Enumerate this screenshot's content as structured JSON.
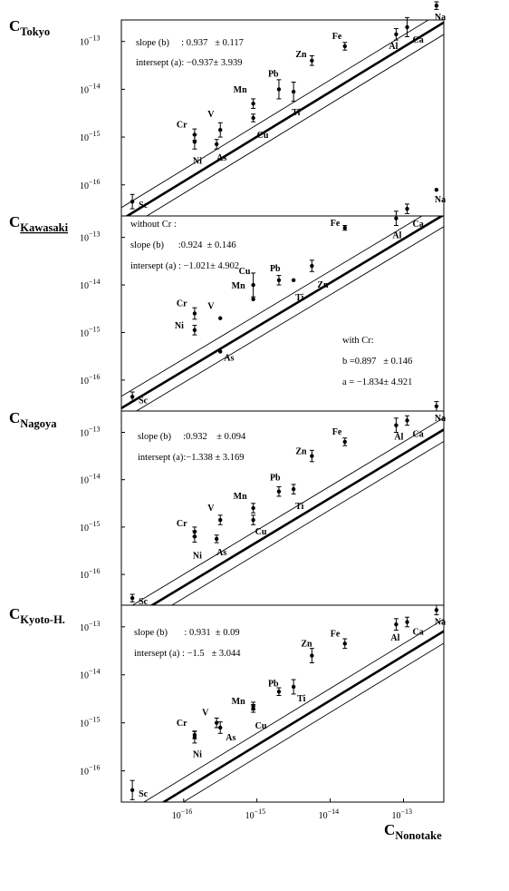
{
  "chart_data": [
    {
      "type": "scatter",
      "ylabel_main": "C",
      "ylabel_sub": "Tokyo",
      "ylabel_underline": false,
      "xlim_log10": [
        -16.85,
        -12.45
      ],
      "ylim_log10": [
        -16.65,
        -12.55
      ],
      "y_ticks": [
        {
          "exp": -16,
          "label": "-16"
        },
        {
          "exp": -15,
          "label": "-15"
        },
        {
          "exp": -14,
          "label": "-14"
        },
        {
          "exp": -13,
          "label": "-13"
        }
      ],
      "fit": {
        "slope": 0.937,
        "intercept": -0.937
      },
      "band_offset": 0.25,
      "points": [
        {
          "el": "Sc",
          "x": -16.7,
          "y": -16.35,
          "err": 0.15,
          "lx": 7,
          "ly": 7
        },
        {
          "el": "Ni",
          "x": -15.85,
          "y": -15.1,
          "err": 0.15,
          "lx": -2,
          "ly": 24
        },
        {
          "el": "Cr",
          "x": -15.85,
          "y": -14.95,
          "err": 0.12,
          "lx": -20,
          "ly": -8
        },
        {
          "el": "As",
          "x": -15.55,
          "y": -15.15,
          "err": 0.1,
          "lx": 0,
          "ly": 18
        },
        {
          "el": "V",
          "x": -15.5,
          "y": -14.85,
          "err": 0.15,
          "lx": -14,
          "ly": -14
        },
        {
          "el": "Cu",
          "x": -15.05,
          "y": -14.6,
          "err": 0.08,
          "lx": 4,
          "ly": 22
        },
        {
          "el": "Mn",
          "x": -15.05,
          "y": -14.3,
          "err": 0.1,
          "lx": -22,
          "ly": -12
        },
        {
          "el": "Pb",
          "x": -14.7,
          "y": -14.0,
          "err": 0.2,
          "lx": -12,
          "ly": -14
        },
        {
          "el": "Ti",
          "x": -14.5,
          "y": -14.05,
          "err": 0.2,
          "lx": -2,
          "ly": 26
        },
        {
          "el": "Zn",
          "x": -14.25,
          "y": -13.4,
          "err": 0.1,
          "lx": -18,
          "ly": -4
        },
        {
          "el": "Fe",
          "x": -13.8,
          "y": -13.1,
          "err": 0.08,
          "lx": -14,
          "ly": -8
        },
        {
          "el": "Al",
          "x": -13.1,
          "y": -12.85,
          "err": 0.12,
          "lx": -8,
          "ly": 16
        },
        {
          "el": "Ca",
          "x": -12.95,
          "y": -12.7,
          "err": 0.2,
          "lx": 6,
          "ly": 17
        },
        {
          "el": "Na",
          "x": -12.55,
          "y": -12.25,
          "err": 0.08,
          "lx": -2,
          "ly": 16
        }
      ],
      "annotations": [
        "slope (b)     : 0.937   ± 0.117",
        "intersept (a): −0.937± 3.939"
      ]
    },
    {
      "type": "scatter",
      "ylabel_main": "C",
      "ylabel_sub": "Kawasaki",
      "ylabel_underline": true,
      "xlim_log10": [
        -16.85,
        -12.45
      ],
      "ylim_log10": [
        -16.65,
        -12.55
      ],
      "y_ticks": [
        {
          "exp": -16,
          "label": "-16"
        },
        {
          "exp": -15,
          "label": "-15"
        },
        {
          "exp": -14,
          "label": "-14"
        },
        {
          "exp": -13,
          "label": "-13"
        }
      ],
      "fit": {
        "slope": 0.924,
        "intercept": -1.021
      },
      "band_offset": 0.25,
      "points": [
        {
          "el": "Sc",
          "x": -16.7,
          "y": -16.35,
          "err": 0.1,
          "lx": 7,
          "ly": 7
        },
        {
          "el": "Ni",
          "x": -15.85,
          "y": -14.95,
          "err": 0.1,
          "lx": -22,
          "ly": -2
        },
        {
          "el": "Cr",
          "x": -15.85,
          "y": -14.6,
          "err": 0.12,
          "lx": -20,
          "ly": -8
        },
        {
          "el": "As",
          "x": -15.5,
          "y": -15.4,
          "err": 0,
          "lx": 4,
          "ly": 10
        },
        {
          "el": "V",
          "x": -15.5,
          "y": -14.7,
          "err": 0,
          "lx": -14,
          "ly": -10
        },
        {
          "el": "Mn",
          "x": -15.05,
          "y": -14.0,
          "err": 0.25,
          "lx": -24,
          "ly": 4
        },
        {
          "el": "Cu",
          "x": -15.05,
          "y": -14.3,
          "err": 0,
          "lx": -16,
          "ly": -28
        },
        {
          "el": "Pb",
          "x": -14.7,
          "y": -13.9,
          "err": 0.1,
          "lx": -10,
          "ly": -10
        },
        {
          "el": "Ti",
          "x": -14.5,
          "y": -13.9,
          "err": 0,
          "lx": 2,
          "ly": 22
        },
        {
          "el": "Zn",
          "x": -14.25,
          "y": -13.6,
          "err": 0.12,
          "lx": 6,
          "ly": 24
        },
        {
          "el": "Fe",
          "x": -13.8,
          "y": -12.8,
          "err": 0.05,
          "lx": -16,
          "ly": -2
        },
        {
          "el": "Al",
          "x": -13.1,
          "y": -12.6,
          "err": 0.15,
          "lx": -4,
          "ly": 22
        },
        {
          "el": "Ca",
          "x": -12.95,
          "y": -12.4,
          "err": 0.1,
          "lx": 6,
          "ly": 20
        },
        {
          "el": "Na",
          "x": -12.55,
          "y": -12.0,
          "err": 0,
          "lx": -2,
          "ly": 14
        }
      ],
      "annotations": [
        "without Cr :",
        "slope (b)      :0.924  ± 0.146",
        "intersept (a) : −1.021± 4.902"
      ],
      "annotations2": [
        "with Cr:",
        "b =0.897   ± 0.146",
        "a = −1.834± 4.921"
      ]
    },
    {
      "type": "scatter",
      "ylabel_main": "C",
      "ylabel_sub": "Nagoya",
      "ylabel_underline": false,
      "xlim_log10": [
        -16.85,
        -12.45
      ],
      "ylim_log10": [
        -16.65,
        -12.55
      ],
      "y_ticks": [
        {
          "exp": -16,
          "label": "-16"
        },
        {
          "exp": -15,
          "label": "-15"
        },
        {
          "exp": -14,
          "label": "-14"
        },
        {
          "exp": -13,
          "label": "-13"
        }
      ],
      "fit": {
        "slope": 0.932,
        "intercept": -1.338
      },
      "band_offset": 0.25,
      "points": [
        {
          "el": "Sc",
          "x": -16.7,
          "y": -16.5,
          "err": 0.08,
          "lx": 7,
          "ly": 7
        },
        {
          "el": "Ni",
          "x": -15.85,
          "y": -15.2,
          "err": 0.12,
          "lx": -2,
          "ly": 24
        },
        {
          "el": "Cr",
          "x": -15.85,
          "y": -15.1,
          "err": 0.1,
          "lx": -20,
          "ly": -6
        },
        {
          "el": "As",
          "x": -15.55,
          "y": -15.25,
          "err": 0.08,
          "lx": 0,
          "ly": 18
        },
        {
          "el": "V",
          "x": -15.5,
          "y": -14.85,
          "err": 0.1,
          "lx": -14,
          "ly": -10
        },
        {
          "el": "Cu",
          "x": -15.05,
          "y": -14.85,
          "err": 0.1,
          "lx": 2,
          "ly": 16
        },
        {
          "el": "Mn",
          "x": -15.05,
          "y": -14.6,
          "err": 0.1,
          "lx": -22,
          "ly": -10
        },
        {
          "el": "Pb",
          "x": -14.7,
          "y": -14.25,
          "err": 0.1,
          "lx": -10,
          "ly": -12
        },
        {
          "el": "Ti",
          "x": -14.5,
          "y": -14.2,
          "err": 0.1,
          "lx": 2,
          "ly": 22
        },
        {
          "el": "Zn",
          "x": -14.25,
          "y": -13.5,
          "err": 0.12,
          "lx": -18,
          "ly": -2
        },
        {
          "el": "Fe",
          "x": -13.8,
          "y": -13.2,
          "err": 0.08,
          "lx": -14,
          "ly": -8
        },
        {
          "el": "Al",
          "x": -13.1,
          "y": -12.85,
          "err": 0.15,
          "lx": -2,
          "ly": 16
        },
        {
          "el": "Ca",
          "x": -12.95,
          "y": -12.75,
          "err": 0.1,
          "lx": 6,
          "ly": 18
        },
        {
          "el": "Na",
          "x": -12.55,
          "y": -12.45,
          "err": 0.1,
          "lx": -2,
          "ly": 16
        }
      ],
      "annotations": [
        "slope (b)     :0.932    ± 0.094",
        "intersept (a):−1.338 ± 3.169"
      ]
    },
    {
      "type": "scatter",
      "ylabel_main": "C",
      "ylabel_sub": "Kyoto-H.",
      "ylabel_underline": false,
      "xlim_log10": [
        -16.85,
        -12.45
      ],
      "ylim_log10": [
        -16.65,
        -12.55
      ],
      "y_ticks": [
        {
          "exp": -16,
          "label": "-16"
        },
        {
          "exp": -15,
          "label": "-15"
        },
        {
          "exp": -14,
          "label": "-14"
        },
        {
          "exp": -13,
          "label": "-13"
        }
      ],
      "x_ticks": [
        {
          "exp": -16,
          "label": "-16"
        },
        {
          "exp": -15,
          "label": "-15"
        },
        {
          "exp": -14,
          "label": "-14"
        },
        {
          "exp": -13,
          "label": "-13"
        }
      ],
      "fit": {
        "slope": 0.931,
        "intercept": -1.5
      },
      "band_offset": 0.25,
      "points": [
        {
          "el": "Sc",
          "x": -16.7,
          "y": -16.4,
          "err": 0.2,
          "lx": 7,
          "ly": 7
        },
        {
          "el": "Ni",
          "x": -15.85,
          "y": -15.3,
          "err": 0.12,
          "lx": -2,
          "ly": 22
        },
        {
          "el": "Cr",
          "x": -15.85,
          "y": -15.25,
          "err": 0.08,
          "lx": -20,
          "ly": -10
        },
        {
          "el": "As",
          "x": -15.5,
          "y": -15.1,
          "err": 0.12,
          "lx": 6,
          "ly": 14
        },
        {
          "el": "V",
          "x": -15.55,
          "y": -15.0,
          "err": 0.1,
          "lx": -16,
          "ly": -8
        },
        {
          "el": "Cu",
          "x": -15.05,
          "y": -14.7,
          "err": 0.08,
          "lx": 2,
          "ly": 22
        },
        {
          "el": "Mn",
          "x": -15.05,
          "y": -14.65,
          "err": 0.08,
          "lx": -24,
          "ly": -2
        },
        {
          "el": "Pb",
          "x": -14.7,
          "y": -14.35,
          "err": 0.08,
          "lx": -12,
          "ly": -6
        },
        {
          "el": "Ti",
          "x": -14.5,
          "y": -14.25,
          "err": 0.15,
          "lx": 4,
          "ly": 16
        },
        {
          "el": "Zn",
          "x": -14.25,
          "y": -13.6,
          "err": 0.15,
          "lx": -12,
          "ly": -10
        },
        {
          "el": "Fe",
          "x": -13.8,
          "y": -13.35,
          "err": 0.1,
          "lx": -16,
          "ly": -8
        },
        {
          "el": "Al",
          "x": -13.1,
          "y": -12.95,
          "err": 0.12,
          "lx": -6,
          "ly": 18
        },
        {
          "el": "Ca",
          "x": -12.95,
          "y": -12.9,
          "err": 0.1,
          "lx": 6,
          "ly": 14
        },
        {
          "el": "Na",
          "x": -12.55,
          "y": -12.65,
          "err": 0.1,
          "lx": -2,
          "ly": 16
        }
      ],
      "annotations": [
        "slope (b)       : 0.931  ± 0.09",
        "intersept (a) : −1.5   ± 3.044"
      ]
    }
  ],
  "tick_base": "10",
  "xlabel_main": "C",
  "xlabel_sub": "Nonotake"
}
